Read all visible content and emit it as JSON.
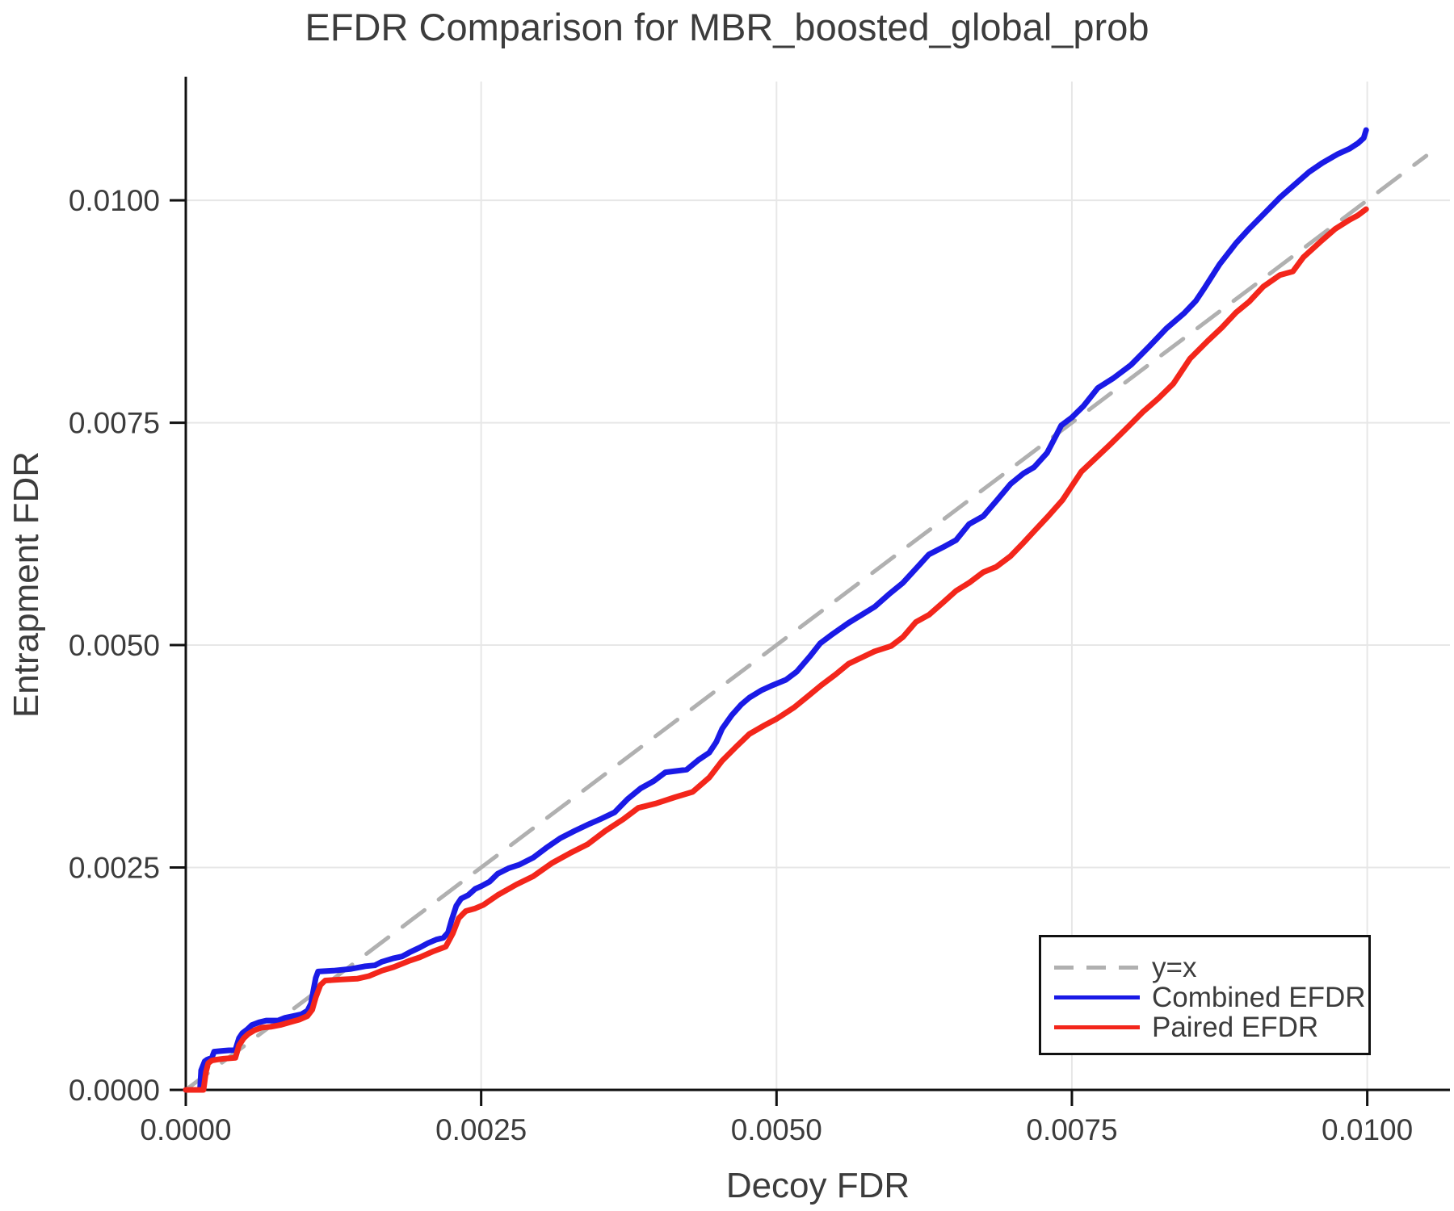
{
  "figure": {
    "title": "EFDR Comparison for MBR_boosted_global_prob",
    "background": "#ffffff"
  },
  "axes": {
    "xlabel": "Decoy FDR",
    "ylabel": "Entrapment FDR",
    "x_tick_labels": [
      "0.0000",
      "0.0025",
      "0.0050",
      "0.0075",
      "0.0100"
    ],
    "y_tick_labels": [
      "0.0000",
      "0.0025",
      "0.0050",
      "0.0075",
      "0.0100"
    ]
  },
  "legend": {
    "items": [
      {
        "label": "y=x",
        "color": "#b0b0b0",
        "style": "dashed"
      },
      {
        "label": "Combined EFDR",
        "color": "#1a1ae6",
        "style": "solid"
      },
      {
        "label": "Paired EFDR",
        "color": "#f3261b",
        "style": "solid"
      }
    ]
  },
  "colors": {
    "text": "#3c3c3c",
    "grid": "#e7e7e7",
    "spine": "#111111",
    "identity": "#b0b0b0",
    "combined": "#1a1ae6",
    "paired": "#f3261b"
  },
  "chart_data": {
    "type": "line",
    "title": "EFDR Comparison for MBR_boosted_global_prob",
    "xlabel": "Decoy FDR",
    "ylabel": "Entrapment FDR",
    "xlim": [
      0,
      0.0107
    ],
    "ylim": [
      0,
      0.011335
    ],
    "grid": true,
    "legend_position": "lower right",
    "x_ticks": [
      0,
      0.0025,
      0.005,
      0.0075,
      0.01
    ],
    "y_ticks": [
      0,
      0.0025,
      0.005,
      0.0075,
      0.01
    ],
    "series": [
      {
        "name": "y=x",
        "style": "dashed",
        "color": "#b0b0b0",
        "width": 5,
        "points": [
          [
            0,
            0
          ],
          [
            0.0105,
            0.0105
          ]
        ]
      },
      {
        "name": "Combined EFDR",
        "style": "solid",
        "color": "#1a1ae6",
        "width": 7,
        "points": [
          [
            0,
            0
          ],
          [
            0.00012,
            0
          ],
          [
            0.00013,
            0.00022
          ],
          [
            0.00016,
            0.00032
          ],
          [
            0.00018,
            0.00034
          ],
          [
            0.00022,
            0.00036
          ],
          [
            0.00024,
            0.00043
          ],
          [
            0.00032,
            0.00044
          ],
          [
            0.00042,
            0.00045
          ],
          [
            0.00045,
            0.00058
          ],
          [
            0.00048,
            0.00064
          ],
          [
            0.00052,
            0.00068
          ],
          [
            0.00056,
            0.00073
          ],
          [
            0.00062,
            0.00076
          ],
          [
            0.00068,
            0.00078
          ],
          [
            0.00078,
            0.00078
          ],
          [
            0.00084,
            0.00081
          ],
          [
            0.00091,
            0.00083
          ],
          [
            0.00098,
            0.00085
          ],
          [
            0.00103,
            0.00089
          ],
          [
            0.00106,
            0.00097
          ],
          [
            0.00108,
            0.00112
          ],
          [
            0.0011,
            0.00126
          ],
          [
            0.00112,
            0.00133
          ],
          [
            0.00125,
            0.00134
          ],
          [
            0.0014,
            0.00136
          ],
          [
            0.00152,
            0.00139
          ],
          [
            0.0016,
            0.0014
          ],
          [
            0.00166,
            0.00144
          ],
          [
            0.00176,
            0.00148
          ],
          [
            0.00183,
            0.0015
          ],
          [
            0.0019,
            0.00155
          ],
          [
            0.00198,
            0.0016
          ],
          [
            0.00205,
            0.00165
          ],
          [
            0.00212,
            0.00169
          ],
          [
            0.00218,
            0.00171
          ],
          [
            0.00222,
            0.00177
          ],
          [
            0.00225,
            0.00191
          ],
          [
            0.00229,
            0.00207
          ],
          [
            0.00233,
            0.00215
          ],
          [
            0.00239,
            0.00219
          ],
          [
            0.00245,
            0.00226
          ],
          [
            0.0025,
            0.00229
          ],
          [
            0.00257,
            0.00234
          ],
          [
            0.00264,
            0.00243
          ],
          [
            0.00273,
            0.00249
          ],
          [
            0.00282,
            0.00253
          ],
          [
            0.00294,
            0.00261
          ],
          [
            0.00305,
            0.00272
          ],
          [
            0.00317,
            0.00283
          ],
          [
            0.00329,
            0.00291
          ],
          [
            0.0034,
            0.00298
          ],
          [
            0.00352,
            0.00305
          ],
          [
            0.00363,
            0.00312
          ],
          [
            0.00374,
            0.00327
          ],
          [
            0.00385,
            0.00339
          ],
          [
            0.00396,
            0.00347
          ],
          [
            0.00406,
            0.00357
          ],
          [
            0.00424,
            0.0036
          ],
          [
            0.00434,
            0.00371
          ],
          [
            0.00443,
            0.00379
          ],
          [
            0.00449,
            0.00391
          ],
          [
            0.00454,
            0.00406
          ],
          [
            0.00462,
            0.00421
          ],
          [
            0.0047,
            0.00433
          ],
          [
            0.00477,
            0.00441
          ],
          [
            0.00487,
            0.00449
          ],
          [
            0.00497,
            0.00455
          ],
          [
            0.00508,
            0.00461
          ],
          [
            0.00517,
            0.0047
          ],
          [
            0.00528,
            0.00487
          ],
          [
            0.00537,
            0.00502
          ],
          [
            0.00546,
            0.00511
          ],
          [
            0.00561,
            0.00525
          ],
          [
            0.00572,
            0.00534
          ],
          [
            0.00583,
            0.00543
          ],
          [
            0.00595,
            0.00557
          ],
          [
            0.00607,
            0.0057
          ],
          [
            0.00618,
            0.00586
          ],
          [
            0.00629,
            0.00602
          ],
          [
            0.00641,
            0.0061
          ],
          [
            0.00652,
            0.00618
          ],
          [
            0.00663,
            0.00636
          ],
          [
            0.00675,
            0.00645
          ],
          [
            0.00686,
            0.00662
          ],
          [
            0.00698,
            0.00681
          ],
          [
            0.00709,
            0.00693
          ],
          [
            0.00718,
            0.007
          ],
          [
            0.00729,
            0.00716
          ],
          [
            0.00736,
            0.00734
          ],
          [
            0.00741,
            0.00747
          ],
          [
            0.0075,
            0.00756
          ],
          [
            0.0076,
            0.00769
          ],
          [
            0.00772,
            0.00789
          ],
          [
            0.00785,
            0.008
          ],
          [
            0.008,
            0.00815
          ],
          [
            0.00815,
            0.00835
          ],
          [
            0.0083,
            0.00856
          ],
          [
            0.00845,
            0.00873
          ],
          [
            0.00855,
            0.00887
          ],
          [
            0.00862,
            0.00901
          ],
          [
            0.00875,
            0.00928
          ],
          [
            0.00889,
            0.00952
          ],
          [
            0.009,
            0.00968
          ],
          [
            0.00912,
            0.00984
          ],
          [
            0.00926,
            0.01003
          ],
          [
            0.00938,
            0.01017
          ],
          [
            0.00951,
            0.01032
          ],
          [
            0.00962,
            0.01042
          ],
          [
            0.00975,
            0.01052
          ],
          [
            0.00985,
            0.01058
          ],
          [
            0.00992,
            0.01064
          ],
          [
            0.00997,
            0.0107
          ],
          [
            0.00999,
            0.01079
          ]
        ]
      },
      {
        "name": "Paired EFDR",
        "style": "solid",
        "color": "#f3261b",
        "width": 7,
        "points": [
          [
            0,
            0
          ],
          [
            0.00015,
            0
          ],
          [
            0.00017,
            0.0002
          ],
          [
            0.00019,
            0.0003
          ],
          [
            0.00022,
            0.00033
          ],
          [
            0.00026,
            0.00034
          ],
          [
            0.00032,
            0.00035
          ],
          [
            0.00042,
            0.00036
          ],
          [
            0.00045,
            0.0005
          ],
          [
            0.00049,
            0.00058
          ],
          [
            0.00053,
            0.00063
          ],
          [
            0.00058,
            0.00067
          ],
          [
            0.00064,
            0.0007
          ],
          [
            0.00072,
            0.00071
          ],
          [
            0.0008,
            0.00073
          ],
          [
            0.00088,
            0.00076
          ],
          [
            0.00096,
            0.00079
          ],
          [
            0.00103,
            0.00083
          ],
          [
            0.00107,
            0.0009
          ],
          [
            0.0011,
            0.00104
          ],
          [
            0.00114,
            0.00118
          ],
          [
            0.00118,
            0.00123
          ],
          [
            0.0013,
            0.00124
          ],
          [
            0.00145,
            0.00125
          ],
          [
            0.00155,
            0.00128
          ],
          [
            0.00166,
            0.00134
          ],
          [
            0.00176,
            0.00138
          ],
          [
            0.00189,
            0.00145
          ],
          [
            0.00198,
            0.00149
          ],
          [
            0.0021,
            0.00156
          ],
          [
            0.0022,
            0.00161
          ],
          [
            0.00226,
            0.00176
          ],
          [
            0.00231,
            0.00193
          ],
          [
            0.00237,
            0.00201
          ],
          [
            0.00245,
            0.00204
          ],
          [
            0.00252,
            0.00208
          ],
          [
            0.00264,
            0.00219
          ],
          [
            0.0028,
            0.00231
          ],
          [
            0.00294,
            0.0024
          ],
          [
            0.0031,
            0.00255
          ],
          [
            0.00325,
            0.00266
          ],
          [
            0.0034,
            0.00276
          ],
          [
            0.00355,
            0.00291
          ],
          [
            0.0037,
            0.00304
          ],
          [
            0.00383,
            0.00317
          ],
          [
            0.00398,
            0.00322
          ],
          [
            0.00414,
            0.00329
          ],
          [
            0.00429,
            0.00335
          ],
          [
            0.00443,
            0.00351
          ],
          [
            0.00454,
            0.0037
          ],
          [
            0.00466,
            0.00386
          ],
          [
            0.00477,
            0.004
          ],
          [
            0.0049,
            0.0041
          ],
          [
            0.005,
            0.00417
          ],
          [
            0.00515,
            0.0043
          ],
          [
            0.00527,
            0.00443
          ],
          [
            0.00538,
            0.00455
          ],
          [
            0.0055,
            0.00467
          ],
          [
            0.00561,
            0.00479
          ],
          [
            0.00572,
            0.00486
          ],
          [
            0.00583,
            0.00493
          ],
          [
            0.00597,
            0.00499
          ],
          [
            0.00607,
            0.00509
          ],
          [
            0.00618,
            0.00526
          ],
          [
            0.00629,
            0.00534
          ],
          [
            0.00641,
            0.00548
          ],
          [
            0.00652,
            0.00561
          ],
          [
            0.00663,
            0.0057
          ],
          [
            0.00675,
            0.00582
          ],
          [
            0.00686,
            0.00588
          ],
          [
            0.00698,
            0.006
          ],
          [
            0.00709,
            0.00615
          ],
          [
            0.00718,
            0.00628
          ],
          [
            0.0073,
            0.00645
          ],
          [
            0.00742,
            0.00663
          ],
          [
            0.00752,
            0.00683
          ],
          [
            0.00758,
            0.00695
          ],
          [
            0.0077,
            0.0071
          ],
          [
            0.00782,
            0.00725
          ],
          [
            0.00795,
            0.00742
          ],
          [
            0.0081,
            0.00762
          ],
          [
            0.00823,
            0.00777
          ],
          [
            0.00836,
            0.00794
          ],
          [
            0.0085,
            0.00822
          ],
          [
            0.00865,
            0.00842
          ],
          [
            0.00877,
            0.00857
          ],
          [
            0.00889,
            0.00874
          ],
          [
            0.009,
            0.00886
          ],
          [
            0.00912,
            0.00903
          ],
          [
            0.00926,
            0.00916
          ],
          [
            0.00937,
            0.0092
          ],
          [
            0.00946,
            0.00936
          ],
          [
            0.0096,
            0.00953
          ],
          [
            0.00973,
            0.00968
          ],
          [
            0.00985,
            0.00978
          ],
          [
            0.00992,
            0.00983
          ],
          [
            0.00999,
            0.0099
          ]
        ]
      }
    ]
  }
}
